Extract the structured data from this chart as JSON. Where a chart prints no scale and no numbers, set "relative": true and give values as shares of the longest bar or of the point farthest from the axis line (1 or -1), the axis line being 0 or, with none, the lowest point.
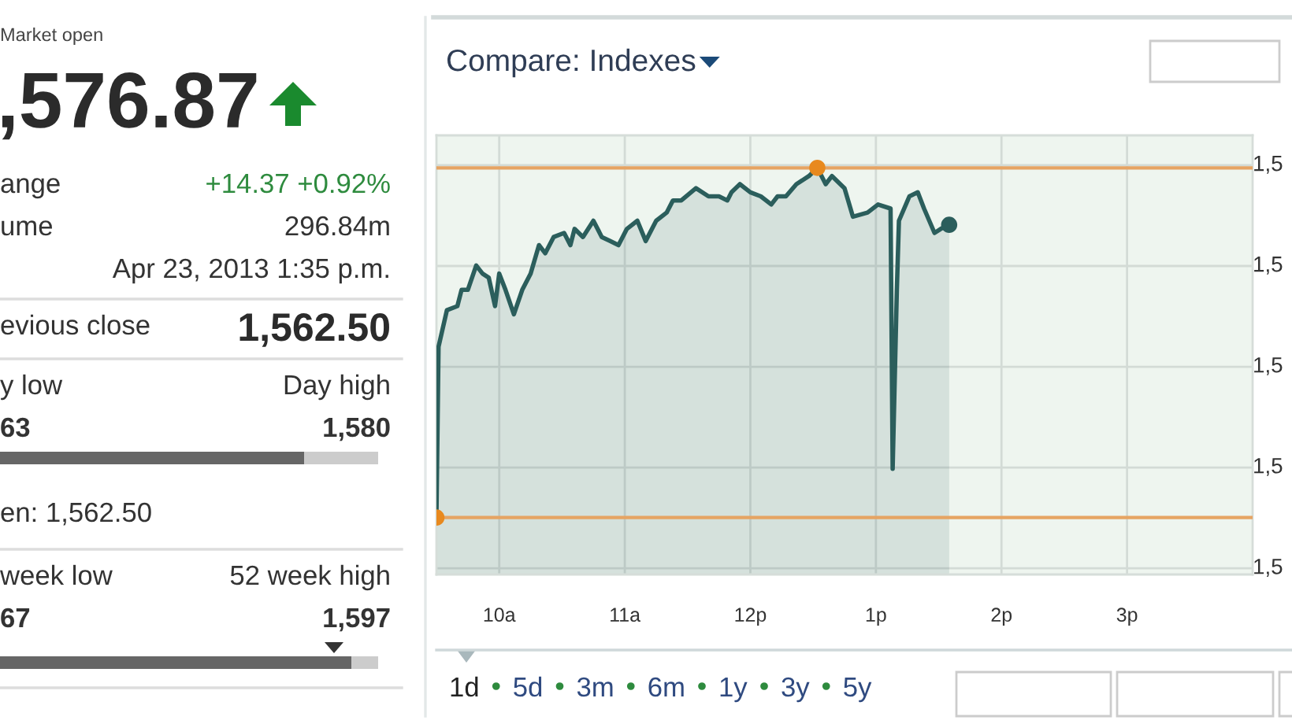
{
  "chart_data": [
    {
      "type": "other",
      "annotations": [
        "Market open",
        ",576.87",
        "ange",
        "+14.37 +0.92%",
        "ume",
        "296.84m",
        "Apr 23, 2013 1:35 p.m.",
        "evious close",
        "1,562.50",
        "y low",
        "Day high",
        "63",
        "1,580",
        "en: 1,562.50",
        "week low",
        "52 week high",
        "67",
        "1,597"
      ]
    },
    {
      "type": "area",
      "relative": true,
      "x": [
        "2013-04-23T09:30",
        "2013-04-23T09:31",
        "2013-04-23T09:35",
        "2013-04-23T09:40",
        "2013-04-23T09:42",
        "2013-04-23T09:45",
        "2013-04-23T09:49",
        "2013-04-23T09:52",
        "2013-04-23T09:55",
        "2013-04-23T09:58",
        "2013-04-23T10:00",
        "2013-04-23T10:03",
        "2013-04-23T10:07",
        "2013-04-23T10:11",
        "2013-04-23T10:15",
        "2013-04-23T10:19",
        "2013-04-23T10:22",
        "2013-04-23T10:26",
        "2013-04-23T10:31",
        "2013-04-23T10:34",
        "2013-04-23T10:36",
        "2013-04-23T10:40",
        "2013-04-23T10:45",
        "2013-04-23T10:49",
        "2013-04-23T10:53",
        "2013-04-23T10:57",
        "2013-04-23T11:01",
        "2013-04-23T11:06",
        "2013-04-23T11:10",
        "2013-04-23T11:15",
        "2013-04-23T11:20",
        "2013-04-23T11:23",
        "2013-04-23T11:27",
        "2013-04-23T11:34",
        "2013-04-23T11:40",
        "2013-04-23T11:45",
        "2013-04-23T11:49",
        "2013-04-23T11:51",
        "2013-04-23T11:55",
        "2013-04-23T12:00",
        "2013-04-23T12:05",
        "2013-04-23T12:10",
        "2013-04-23T12:13",
        "2013-04-23T12:17",
        "2013-04-23T12:22",
        "2013-04-23T12:28",
        "2013-04-23T12:32",
        "2013-04-23T12:36",
        "2013-04-23T12:39",
        "2013-04-23T12:45",
        "2013-04-23T12:49",
        "2013-04-23T12:56",
        "2013-04-23T13:01",
        "2013-04-23T13:07",
        "2013-04-23T13:08",
        "2013-04-23T13:10",
        "2013-04-23T13:11",
        "2013-04-23T13:16",
        "2013-04-23T13:20",
        "2013-04-23T13:23",
        "2013-04-23T13:28",
        "2013-04-23T13:31",
        "2013-04-23T13:35"
      ],
      "series": [
        {
          "color": "#2b5e5c",
          "values": [
            0.14,
            0.56,
            0.65,
            0.66,
            0.7,
            0.7,
            0.76,
            0.74,
            0.73,
            0.66,
            0.74,
            0.7,
            0.64,
            0.7,
            0.74,
            0.81,
            0.79,
            0.83,
            0.84,
            0.81,
            0.85,
            0.83,
            0.87,
            0.83,
            0.82,
            0.81,
            0.85,
            0.87,
            0.82,
            0.87,
            0.89,
            0.92,
            0.92,
            0.95,
            0.93,
            0.93,
            0.92,
            0.94,
            0.96,
            0.94,
            0.93,
            0.91,
            0.93,
            0.93,
            0.96,
            0.98,
            1.0,
            0.96,
            0.98,
            0.95,
            0.88,
            0.89,
            0.91,
            0.9,
            0.26,
            0.7,
            0.87,
            0.93,
            0.94,
            0.9,
            0.84,
            0.85,
            0.86
          ]
        },
        {
          "type": "scatter",
          "color": "#e8891e",
          "x": [
            "2013-04-23T09:30",
            "2013-04-23T12:32"
          ],
          "values": [
            0.14,
            1.0
          ]
        },
        {
          "type": "scatter",
          "color": "#2b5e5c",
          "x": [
            "2013-04-23T13:35"
          ],
          "values": [
            0.86
          ]
        }
      ],
      "xlim": [
        "2013-04-23T09:30",
        "2013-04-23T16:00"
      ],
      "xticks": [
        {
          "value": "2013-04-23T10:00",
          "label": "10a"
        },
        {
          "value": "2013-04-23T11:00",
          "label": "11a"
        },
        {
          "value": "2013-04-23T12:00",
          "label": "12p"
        },
        {
          "value": "2013-04-23T13:00",
          "label": "1p"
        },
        {
          "value": "2013-04-23T14:00",
          "label": "2p"
        },
        {
          "value": "2013-04-23T15:00",
          "label": "3p"
        }
      ],
      "grid": true,
      "ref_lines": [
        {
          "axis": "y",
          "value": 0.14,
          "color": "#e6a463"
        },
        {
          "axis": "y",
          "value": 1.0,
          "color": "#e6a463"
        }
      ],
      "annotations": [
        "Compare: Indexes",
        "1d",
        "5d",
        "3m",
        "6m",
        "1y",
        "3y",
        "5y",
        "1,5",
        "1,5",
        "1,5",
        "1,5",
        "1,5"
      ]
    }
  ]
}
